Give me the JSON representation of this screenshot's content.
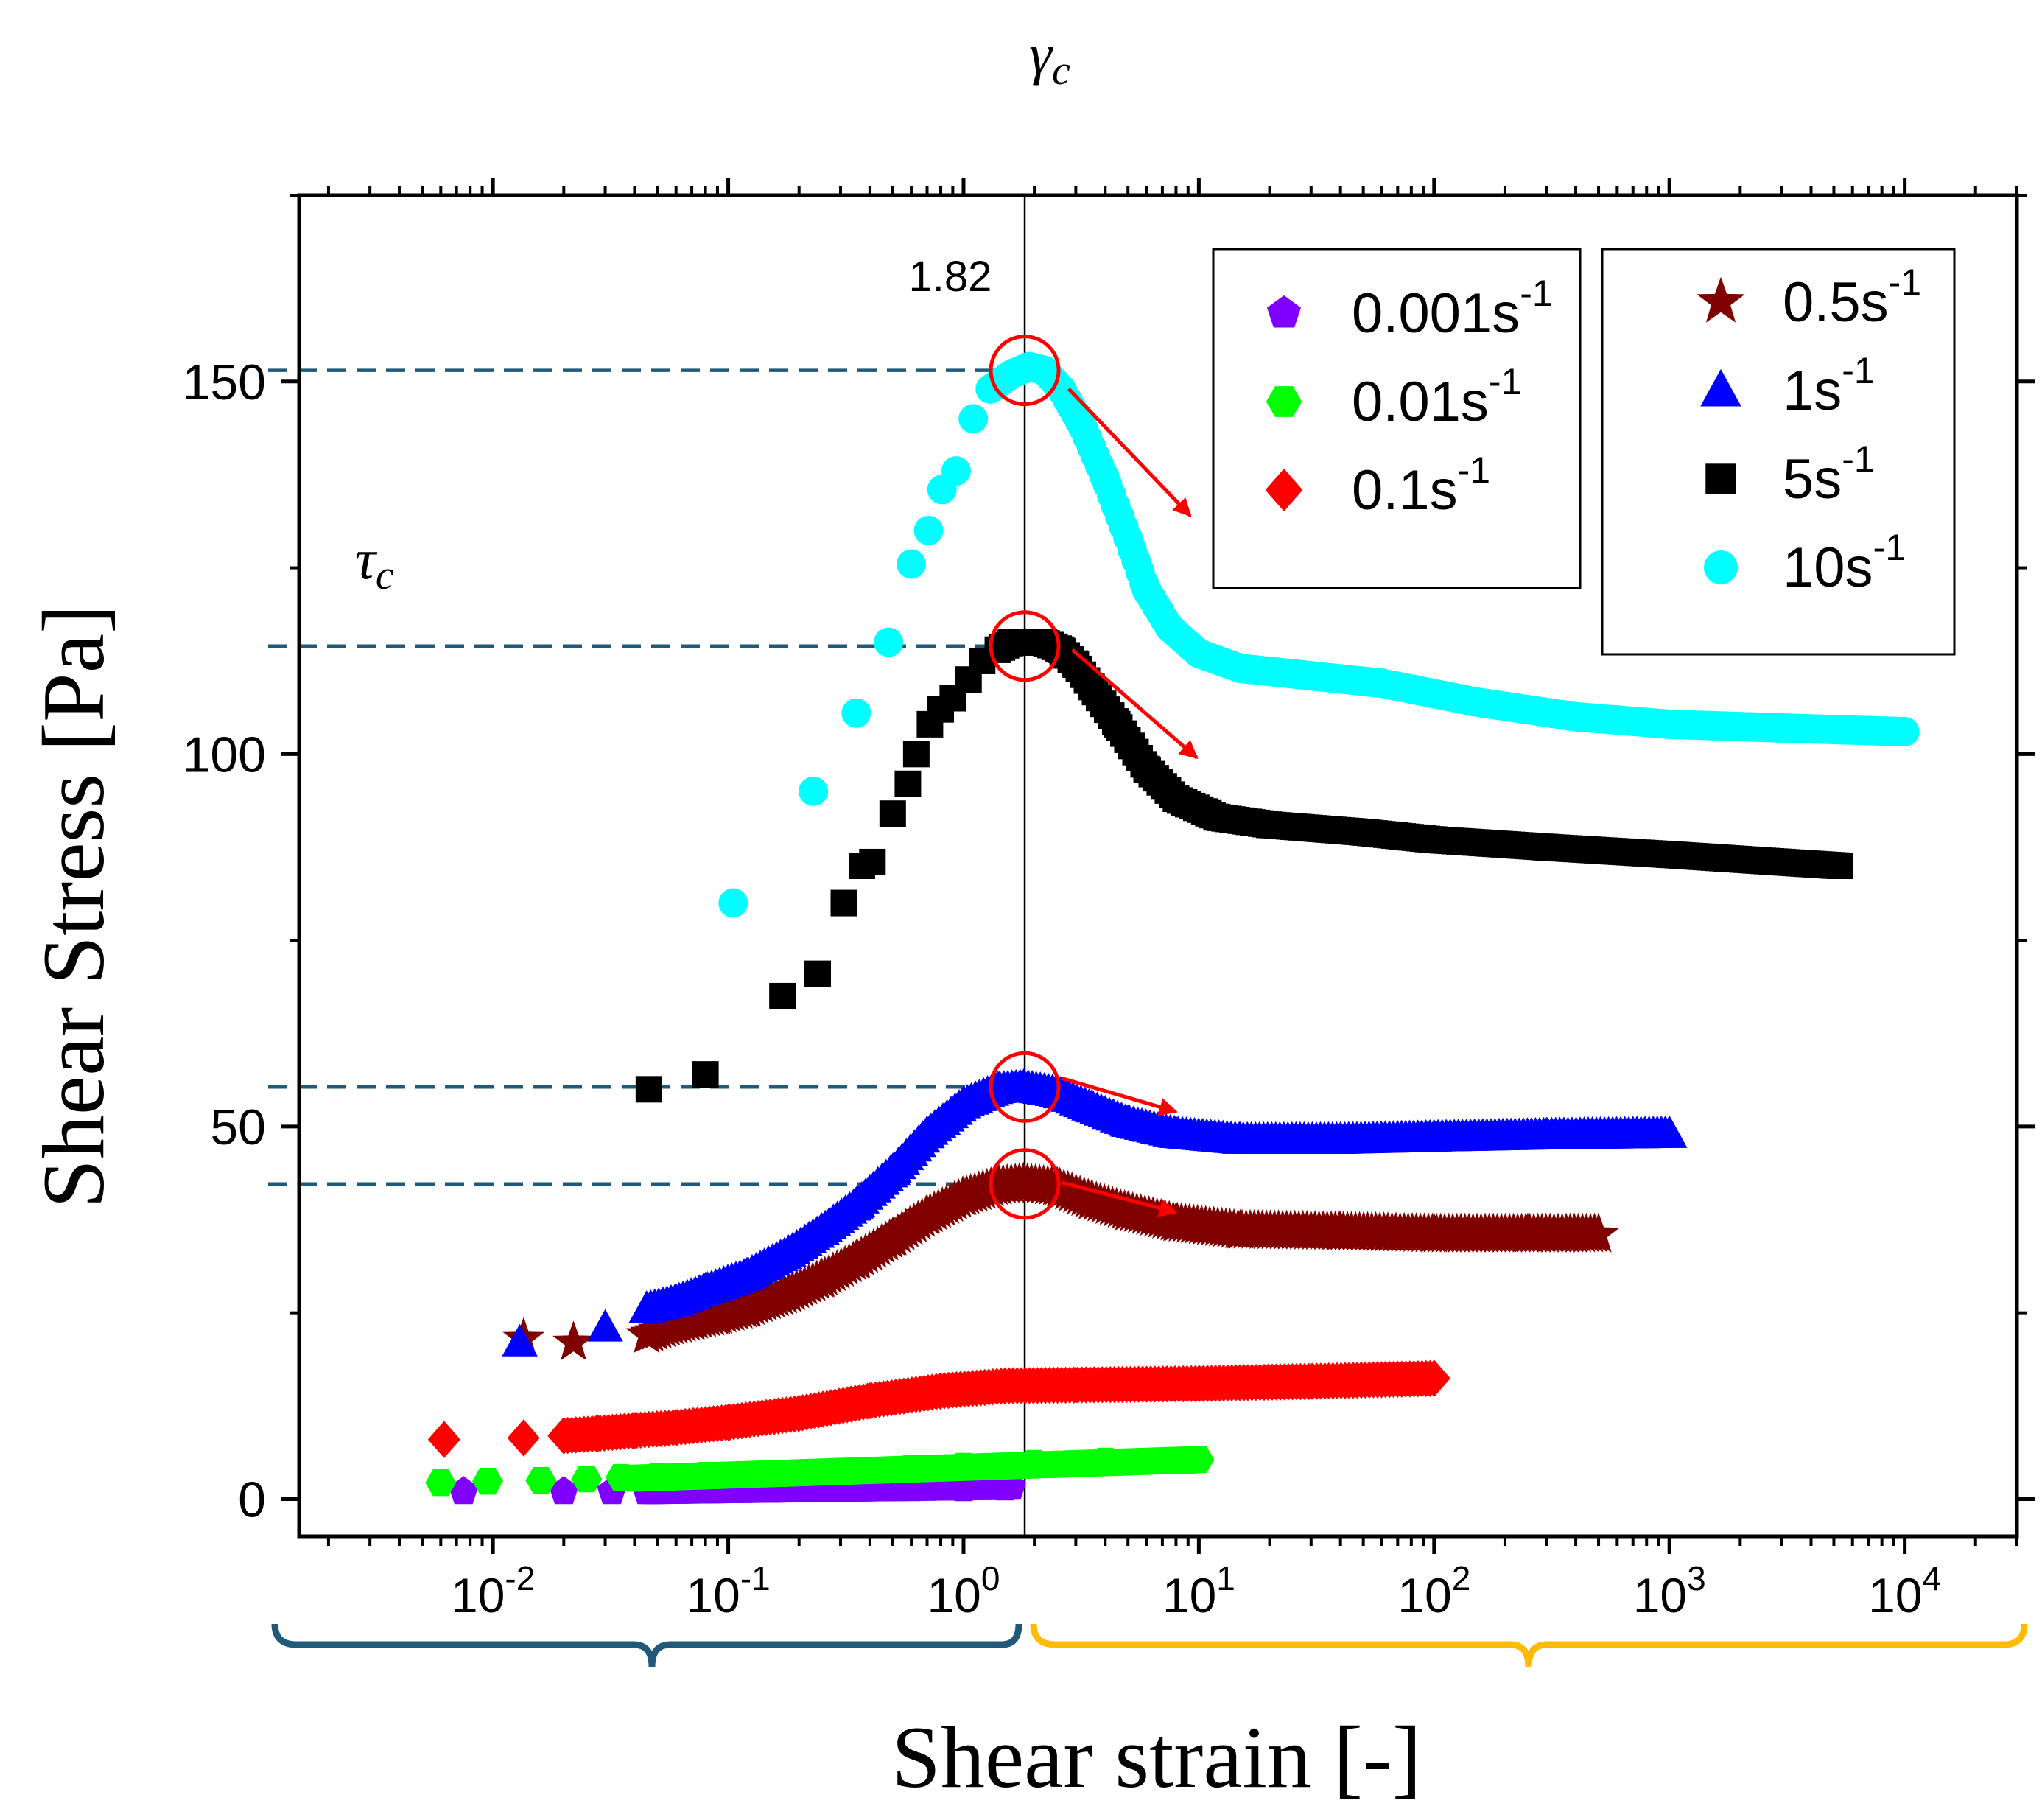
{
  "chart_data": {
    "type": "scatter",
    "xlabel": "Shear strain [-]",
    "ylabel": "Shear Stress [Pa]",
    "x_scale": "log",
    "xlim": [
      0.0015,
      30000
    ],
    "ylim": [
      -5,
      175
    ],
    "x_ticks": [
      {
        "value": 0.01,
        "base": "10",
        "exp": "-2"
      },
      {
        "value": 0.1,
        "base": "10",
        "exp": "-1"
      },
      {
        "value": 1,
        "base": "10",
        "exp": "0"
      },
      {
        "value": 10,
        "base": "10",
        "exp": "1"
      },
      {
        "value": 100,
        "base": "10",
        "exp": "2"
      },
      {
        "value": 1000,
        "base": "10",
        "exp": "3"
      },
      {
        "value": 10000,
        "base": "10",
        "exp": "4"
      }
    ],
    "y_ticks": [
      {
        "value": 0,
        "label": "0"
      },
      {
        "value": 50,
        "label": "50"
      },
      {
        "value": 100,
        "label": "100"
      },
      {
        "value": 150,
        "label": "150"
      }
    ],
    "critical_strain": {
      "symbol": "γ",
      "subscript": "c",
      "value": 1.82,
      "label": "1.82"
    },
    "critical_stress_label": {
      "symbol": "τ",
      "subscript": "c"
    },
    "critical_stresses": [
      151.5,
      114.5,
      55.3,
      42.3
    ],
    "arrows": [
      {
        "from": [
          2.8,
          149
        ],
        "to": [
          9.2,
          132
        ]
      },
      {
        "from": [
          2.9,
          114
        ],
        "to": [
          9.8,
          99.5
        ]
      },
      {
        "from": [
          2.6,
          56.5
        ],
        "to": [
          8.0,
          52
        ]
      },
      {
        "from": [
          2.6,
          42.5
        ],
        "to": [
          8.0,
          38.5
        ]
      }
    ],
    "legend_left": [
      {
        "key": "s0001",
        "base": "0.001s",
        "exp": "-1"
      },
      {
        "key": "s001",
        "base": "0.01s",
        "exp": "-1"
      },
      {
        "key": "s01",
        "base": "0.1s",
        "exp": "-1"
      }
    ],
    "legend_right": [
      {
        "key": "s05",
        "base": "0.5s",
        "exp": "-1"
      },
      {
        "key": "s1",
        "base": "1s",
        "exp": "-1"
      },
      {
        "key": "s5",
        "base": "5s",
        "exp": "-1"
      },
      {
        "key": "s10",
        "base": "10s",
        "exp": "-1"
      }
    ],
    "series": [
      {
        "key": "s0001",
        "name": "0.001s-1",
        "color": "#8000ff",
        "marker": "pentagon",
        "points": [
          [
            0.0075,
            1.0
          ],
          [
            0.02,
            1.0
          ],
          [
            0.032,
            1.0
          ],
          [
            0.045,
            1.1
          ],
          [
            0.06,
            1.1
          ],
          [
            0.09,
            1.2
          ],
          [
            0.15,
            1.2
          ],
          [
            0.3,
            1.3
          ],
          [
            0.6,
            1.4
          ],
          [
            1.0,
            1.4
          ],
          [
            1.5,
            1.5
          ]
        ],
        "segments": [
          {
            "x0": 0.045,
            "x1": 1.6,
            "y0": 1.0,
            "y1": 1.6
          }
        ]
      },
      {
        "key": "s001",
        "name": "0.01s-1",
        "color": "#00ff00",
        "marker": "hexagon",
        "points": [
          [
            0.006,
            2.2
          ],
          [
            0.0095,
            2.4
          ],
          [
            0.016,
            2.5
          ],
          [
            0.025,
            2.7
          ],
          [
            0.035,
            2.9
          ],
          [
            0.05,
            3.0
          ],
          [
            0.08,
            3.2
          ],
          [
            0.15,
            3.4
          ],
          [
            0.3,
            3.7
          ],
          [
            0.6,
            4.1
          ],
          [
            1.0,
            4.4
          ],
          [
            2.0,
            4.8
          ],
          [
            4.0,
            5.1
          ],
          [
            9.0,
            5.2
          ]
        ],
        "segments": [
          {
            "x0": 0.04,
            "x1": 10,
            "y0": 2.8,
            "y1": 5.3
          }
        ]
      },
      {
        "key": "s01",
        "name": "0.1s-1",
        "color": "#ff0000",
        "marker": "diamond",
        "points": [
          [
            0.0062,
            8.0
          ],
          [
            0.0135,
            8.2
          ],
          [
            0.02,
            8.5
          ],
          [
            0.028,
            8.8
          ],
          [
            0.04,
            9.2
          ],
          [
            0.06,
            9.6
          ],
          [
            0.1,
            10.3
          ],
          [
            0.2,
            11.5
          ],
          [
            0.4,
            13.2
          ],
          [
            0.8,
            14.5
          ],
          [
            1.5,
            15.2
          ],
          [
            3.0,
            15.3
          ],
          [
            10,
            15.5
          ],
          [
            30,
            15.8
          ],
          [
            100,
            16.2
          ]
        ],
        "segments": [
          {
            "x0": 0.02,
            "x1": 100,
            "y0": null,
            "y1": null
          }
        ]
      },
      {
        "key": "s05",
        "name": "0.5s-1",
        "color": "#800000",
        "marker": "star",
        "points": [
          [
            0.0135,
            21.5
          ],
          [
            0.022,
            21
          ],
          [
            0.045,
            22.0
          ],
          [
            0.055,
            23.0
          ],
          [
            0.07,
            23.8
          ],
          [
            0.09,
            24.5
          ],
          [
            0.12,
            25.5
          ],
          [
            0.18,
            27.5
          ],
          [
            0.25,
            29.5
          ],
          [
            0.35,
            32.0
          ],
          [
            0.5,
            35.0
          ],
          [
            0.7,
            38.0
          ],
          [
            1.0,
            40.5
          ],
          [
            1.4,
            42.0
          ],
          [
            1.8,
            42.3
          ],
          [
            2.5,
            41.8
          ],
          [
            3.5,
            40.0
          ],
          [
            5.0,
            38.5
          ],
          [
            8.0,
            37.0
          ],
          [
            15,
            36.0
          ],
          [
            40,
            35.8
          ],
          [
            100,
            35.5
          ],
          [
            250,
            35.5
          ],
          [
            500,
            35.5
          ]
        ],
        "segments": [
          {
            "x0": 0.045,
            "x1": 500,
            "y0": null,
            "y1": null
          }
        ]
      },
      {
        "key": "s1",
        "name": "1s-1",
        "color": "#0000ff",
        "marker": "triangle",
        "points": [
          [
            0.013,
            21
          ],
          [
            0.03,
            23
          ],
          [
            0.045,
            25.5
          ],
          [
            0.06,
            26.5
          ],
          [
            0.08,
            28.0
          ],
          [
            0.12,
            30.0
          ],
          [
            0.18,
            33.0
          ],
          [
            0.25,
            36.0
          ],
          [
            0.35,
            39.5
          ],
          [
            0.5,
            44.0
          ],
          [
            0.7,
            49.0
          ],
          [
            1.0,
            53.0
          ],
          [
            1.4,
            55.0
          ],
          [
            1.8,
            55.3
          ],
          [
            2.5,
            54.5
          ],
          [
            3.5,
            52.5
          ],
          [
            5.0,
            50.5
          ],
          [
            8.0,
            49.0
          ],
          [
            15,
            48.2
          ],
          [
            40,
            48.2
          ],
          [
            100,
            48.5
          ],
          [
            300,
            48.8
          ],
          [
            1000,
            49.0
          ]
        ],
        "segments": [
          {
            "x0": 0.045,
            "x1": 1000,
            "y0": null,
            "y1": null
          }
        ]
      },
      {
        "key": "s5",
        "name": "5s-1",
        "color": "#000000",
        "marker": "square",
        "points": [
          [
            0.046,
            55
          ],
          [
            0.08,
            57
          ],
          [
            0.17,
            67.5
          ],
          [
            0.24,
            70.5
          ],
          [
            0.31,
            80
          ],
          [
            0.37,
            85
          ],
          [
            0.41,
            85.5
          ],
          [
            0.5,
            92
          ],
          [
            0.58,
            96
          ],
          [
            0.63,
            100
          ],
          [
            0.72,
            104
          ],
          [
            0.8,
            106
          ],
          [
            0.9,
            107.5
          ],
          [
            1.05,
            110
          ],
          [
            1.2,
            112.5
          ],
          [
            1.4,
            114
          ],
          [
            1.6,
            115
          ],
          [
            1.9,
            115
          ],
          [
            2.2,
            115
          ],
          [
            2.6,
            114
          ],
          [
            3.0,
            112
          ],
          [
            3.5,
            109
          ],
          [
            4.5,
            104
          ],
          [
            6.0,
            98
          ],
          [
            8.0,
            94
          ],
          [
            12,
            91.5
          ],
          [
            20,
            90.5
          ],
          [
            50,
            89.5
          ],
          [
            100,
            88.5
          ],
          [
            300,
            87.5
          ],
          [
            1000,
            86.5
          ],
          [
            3000,
            85.5
          ],
          [
            5300,
            85
          ]
        ],
        "segments": [
          {
            "x0": 1.4,
            "x1": 5300,
            "y0": null,
            "y1": null
          }
        ]
      },
      {
        "key": "s10",
        "name": "10s-1",
        "color": "#00ffff",
        "marker": "circle",
        "points": [
          [
            0.105,
            80
          ],
          [
            0.23,
            95
          ],
          [
            0.35,
            105.5
          ],
          [
            0.48,
            115
          ],
          [
            0.6,
            125.5
          ],
          [
            0.71,
            130
          ],
          [
            0.81,
            135.5
          ],
          [
            0.93,
            138
          ],
          [
            1.1,
            145
          ],
          [
            1.3,
            149
          ],
          [
            1.6,
            151
          ],
          [
            1.9,
            152
          ],
          [
            2.2,
            151.5
          ],
          [
            2.6,
            149
          ],
          [
            3.2,
            144
          ],
          [
            4.0,
            137
          ],
          [
            5.0,
            129
          ],
          [
            6.0,
            122
          ],
          [
            7.5,
            117
          ],
          [
            10,
            113.5
          ],
          [
            15,
            111.5
          ],
          [
            30,
            110.5
          ],
          [
            60,
            109.5
          ],
          [
            150,
            107
          ],
          [
            400,
            105
          ],
          [
            1000,
            104
          ],
          [
            3000,
            103.5
          ],
          [
            10000,
            103
          ]
        ],
        "segments": [
          {
            "x0": 1.3,
            "x1": 10000,
            "y0": null,
            "y1": null
          }
        ]
      }
    ]
  }
}
